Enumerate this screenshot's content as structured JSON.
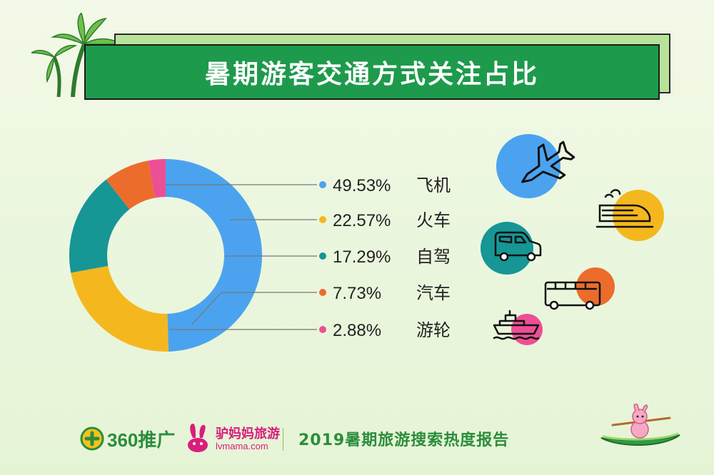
{
  "title": "暑期游客交通方式关注占比",
  "chart_data": {
    "type": "pie",
    "variant": "donut",
    "slices": [
      {
        "label": "飞机",
        "value": 49.53,
        "display": "49.53%",
        "color": "#4ba3ef"
      },
      {
        "label": "火车",
        "value": 22.57,
        "display": "22.57%",
        "color": "#f4b81e"
      },
      {
        "label": "自驾",
        "value": 17.29,
        "display": "17.29%",
        "color": "#169695"
      },
      {
        "label": "汽车",
        "value": 7.73,
        "display": "7.73%",
        "color": "#ec6c2c"
      },
      {
        "label": "游轮",
        "value": 2.88,
        "display": "2.88%",
        "color": "#ec4f94"
      }
    ],
    "legend_placement": "right"
  },
  "icons": [
    {
      "name": "airplane-icon",
      "color": "#4ba3ef"
    },
    {
      "name": "train-icon",
      "color": "#f4b81e"
    },
    {
      "name": "car-icon",
      "color": "#169695"
    },
    {
      "name": "bus-icon",
      "color": "#ec6c2c"
    },
    {
      "name": "ship-icon",
      "color": "#ec4f94"
    }
  ],
  "footer": {
    "brand360": "360推广",
    "lvmama_cn": "驴妈妈旅游",
    "lvmama_en": "lvmama.com",
    "report_title": "2019暑期旅游搜索热度报告"
  }
}
